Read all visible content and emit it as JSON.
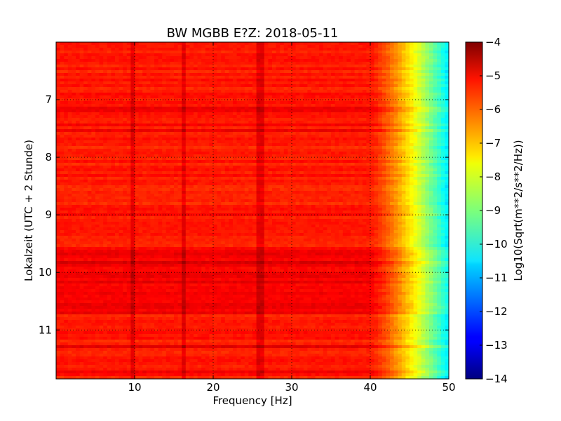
{
  "chart_data": {
    "type": "heatmap",
    "title": "BW MGBB E?Z: 2018-05-11",
    "xlabel": "Frequency [Hz]",
    "ylabel": "Lokalzeit (UTC + 2 Stunde)",
    "xlim": [
      0,
      50
    ],
    "ylim": [
      11.85,
      6.0
    ],
    "xticks": [
      10,
      20,
      30,
      40,
      50
    ],
    "yticks": [
      7,
      8,
      9,
      10,
      11
    ],
    "grid": true,
    "grid_style": "dotted",
    "colorbar": {
      "label": "Log10(Sqrt(m**2/s**2/Hz))",
      "range": [
        -14,
        -4
      ],
      "ticks": [
        -4,
        -5,
        -6,
        -7,
        -8,
        -9,
        -10,
        -11,
        -12,
        -13,
        -14
      ],
      "colormap": "jet"
    },
    "description_values": {
      "low_frequency_level": -5.5,
      "rolloff_start_hz": 40,
      "high_frequency_level": -10.5,
      "persistent_spectral_lines_hz": [
        9.8,
        16.2,
        26
      ],
      "elevated_time_band": [
        9.6,
        10.7
      ]
    }
  }
}
